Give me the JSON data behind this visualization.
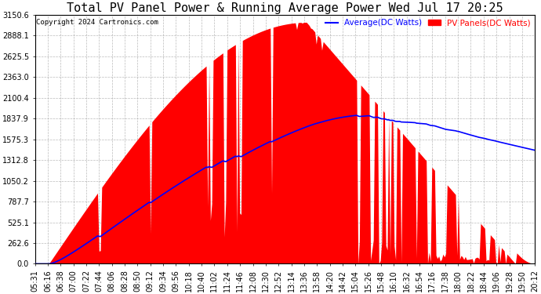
{
  "title": "Total PV Panel Power & Running Average Power Wed Jul 17 20:25",
  "copyright": "Copyright 2024 Cartronics.com",
  "legend_avg": "Average(DC Watts)",
  "legend_pv": "PV Panels(DC Watts)",
  "yticks": [
    0.0,
    262.6,
    525.1,
    787.7,
    1050.2,
    1312.8,
    1575.3,
    1837.9,
    2100.4,
    2363.0,
    2625.5,
    2888.1,
    3150.6
  ],
  "ymax": 3150.6,
  "ymin": 0.0,
  "background_color": "#ffffff",
  "plot_bg_color": "#ffffff",
  "grid_color": "#aaaaaa",
  "bar_color": "#ff0000",
  "avg_line_color": "#0000ff",
  "title_fontsize": 11,
  "tick_fontsize": 7.0,
  "n_points": 360,
  "x_labels": [
    "05:31",
    "06:16",
    "06:38",
    "07:00",
    "07:22",
    "07:44",
    "08:06",
    "08:28",
    "08:50",
    "09:12",
    "09:34",
    "09:56",
    "10:18",
    "10:40",
    "11:02",
    "11:24",
    "11:46",
    "12:08",
    "12:30",
    "12:52",
    "13:14",
    "13:36",
    "13:58",
    "14:20",
    "14:42",
    "15:04",
    "15:26",
    "15:48",
    "16:10",
    "16:32",
    "16:54",
    "17:16",
    "17:38",
    "18:00",
    "18:22",
    "18:44",
    "19:06",
    "19:28",
    "19:50",
    "20:12"
  ]
}
